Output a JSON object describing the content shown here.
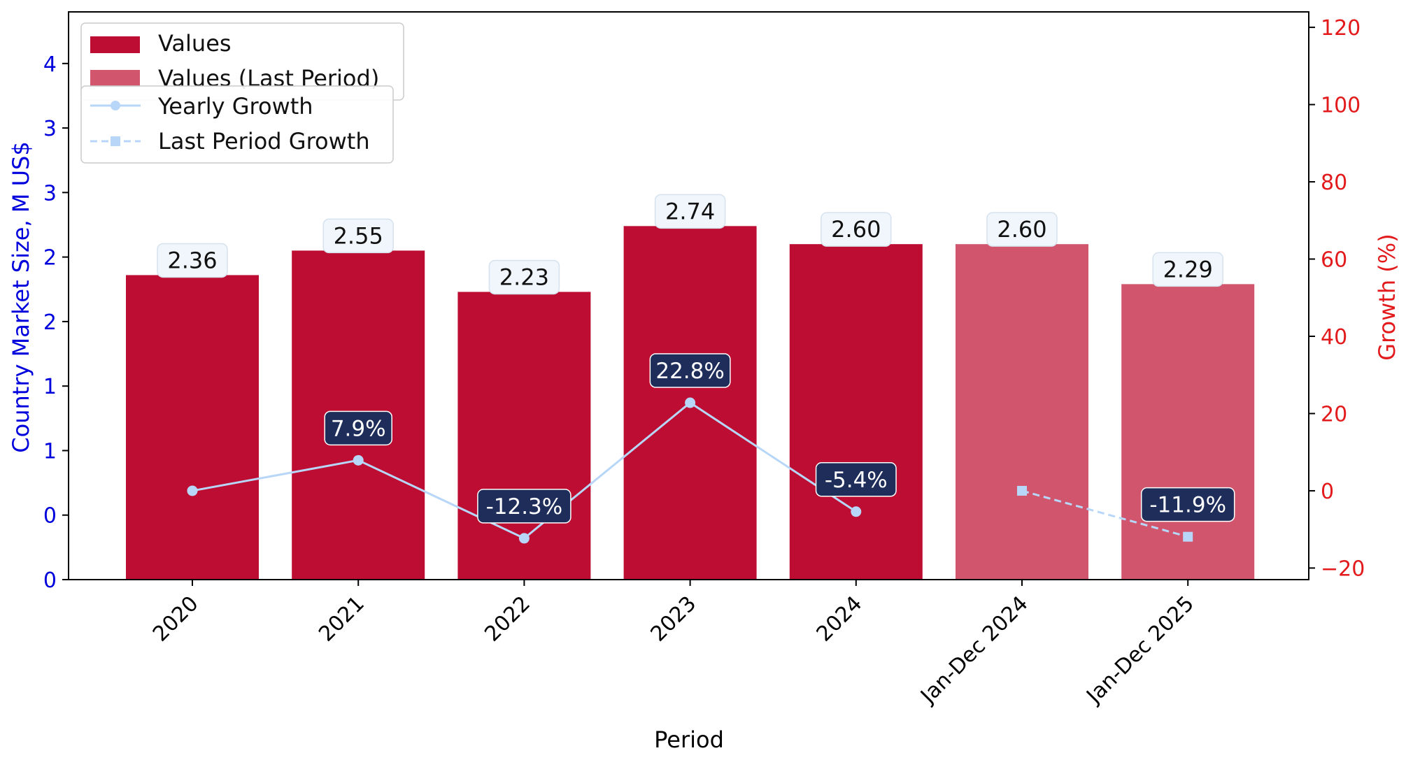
{
  "chart_data": {
    "type": "bar",
    "xlabel": "Period",
    "ylabel_left": "Country Market Size, M US$",
    "ylabel_right": "Growth (%)",
    "categories": [
      "2020",
      "2021",
      "2022",
      "2023",
      "2024",
      "Jan-Dec 2024",
      "Jan-Dec 2025"
    ],
    "series": [
      {
        "name": "Values",
        "axis": "left",
        "values": [
          2.36,
          2.55,
          2.23,
          2.74,
          2.6,
          null,
          null
        ],
        "labels": [
          "2.36",
          "2.55",
          "2.23",
          "2.74",
          "2.60",
          null,
          null
        ],
        "color": "#bd0d32"
      },
      {
        "name": "Values (Last Period)",
        "axis": "left",
        "values": [
          null,
          null,
          null,
          null,
          null,
          2.6,
          2.29
        ],
        "labels": [
          null,
          null,
          null,
          null,
          null,
          "2.60",
          "2.29"
        ],
        "color": "#d1556c"
      },
      {
        "name": "Yearly Growth",
        "axis": "right",
        "type": "line",
        "values": [
          0,
          7.9,
          -12.3,
          22.8,
          -5.4,
          null,
          null
        ],
        "labels": [
          null,
          "7.9%",
          "-12.3%",
          "22.8%",
          "-5.4%",
          null,
          null
        ],
        "color": "#b8d7f8",
        "style": "solid",
        "marker": "circle"
      },
      {
        "name": "Last Period Growth",
        "axis": "right",
        "type": "line",
        "values": [
          null,
          null,
          null,
          null,
          null,
          0,
          -11.9
        ],
        "labels": [
          null,
          null,
          null,
          null,
          null,
          null,
          "-11.9%"
        ],
        "color": "#b8d7f8",
        "style": "dashed",
        "marker": "square"
      }
    ],
    "ylim_left": [
      0,
      4.4
    ],
    "ytick_left_values": [
      0,
      0.5,
      1,
      1.5,
      2,
      2.5,
      3,
      3.5,
      4
    ],
    "ytick_left_labels": [
      "0",
      "0",
      "1",
      "1",
      "2",
      "2",
      "3",
      "3",
      "4"
    ],
    "ylim_right": [
      -23,
      124
    ],
    "ytick_right": [
      -20,
      0,
      20,
      40,
      60,
      80,
      100,
      120
    ],
    "legend_placement": "top-left",
    "grid": false,
    "colors": {
      "left_axis": "#0000dd",
      "right_axis": "#e31a1c",
      "label_box_bg": "#f0f6fb",
      "growth_box_bg": "#1f2d5a"
    }
  }
}
